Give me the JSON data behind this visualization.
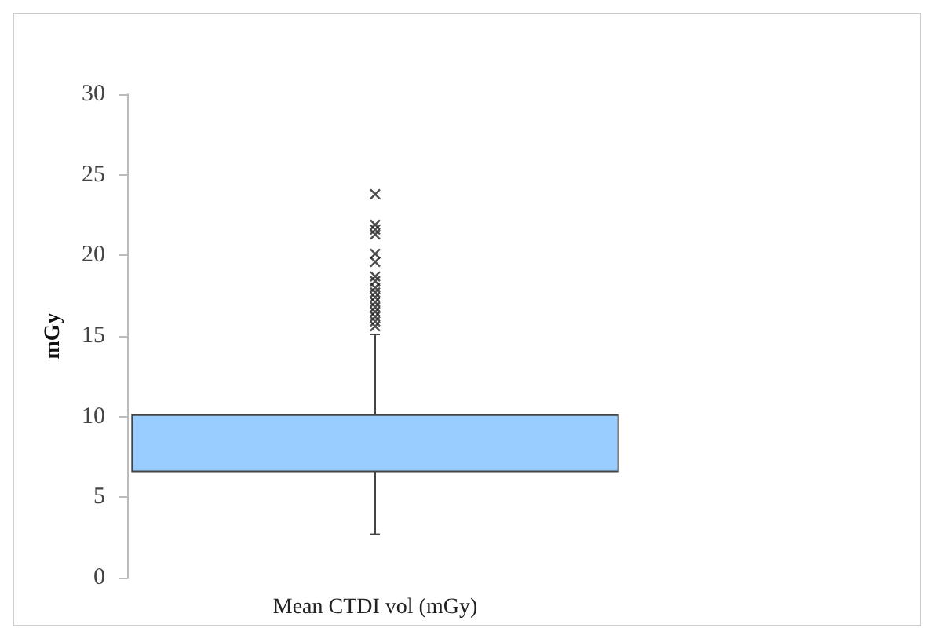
{
  "chart_data": {
    "type": "box",
    "ylabel": "mGy",
    "categories": [
      "Mean CTDI vol (mGy)"
    ],
    "color": "#99ccff",
    "marker": "cross",
    "boxes": [
      {
        "low": 2.7,
        "q1": 6.6,
        "median": 10.1,
        "q3": 10.1,
        "high": 15.1,
        "outliers": [
          23.8,
          21.9,
          21.6,
          21.3,
          20.1,
          19.6,
          18.7,
          18.4,
          18.0,
          17.7,
          17.4,
          17.1,
          16.8,
          16.5,
          16.2,
          15.9,
          15.6
        ]
      }
    ],
    "ylim": [
      0,
      30
    ],
    "yticks": [
      0,
      5,
      10,
      15,
      20,
      25,
      30
    ]
  }
}
